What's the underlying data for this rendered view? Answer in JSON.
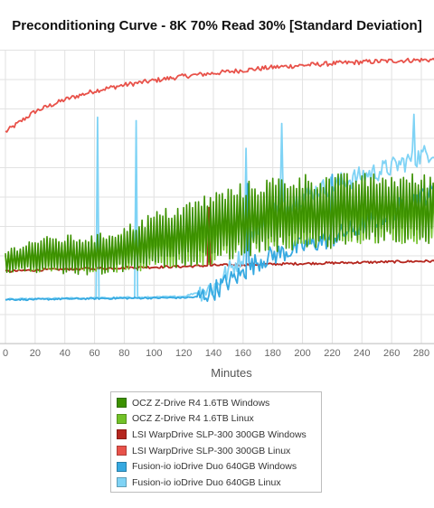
{
  "chart_data": {
    "type": "line",
    "title": "Preconditioning Curve - 8K 70% Read 30% [Standard Deviation]",
    "xlabel": "Minutes",
    "ylabel": "",
    "xlim": [
      0,
      290
    ],
    "x_ticks": [
      0,
      20,
      40,
      60,
      80,
      100,
      120,
      140,
      160,
      180,
      200,
      220,
      240,
      260,
      280
    ],
    "x_tick_labels": [
      "0",
      "20",
      "40",
      "60",
      "80",
      "100",
      "120",
      "140",
      "160",
      "180",
      "200",
      "220",
      "240",
      "260",
      "280"
    ],
    "ylim": [
      0,
      100
    ],
    "grid": true,
    "legend_position": "bottom",
    "series": [
      {
        "name": "OCZ Z-Drive R4 1.6TB Windows",
        "color": "#3c9100",
        "x": [
          0,
          20,
          40,
          60,
          80,
          100,
          120,
          140,
          160,
          180,
          200,
          220,
          240,
          260,
          280,
          290
        ],
        "center": [
          28,
          30,
          30,
          30,
          32,
          35,
          37,
          40,
          42,
          44,
          45,
          45,
          46,
          46,
          46,
          46
        ],
        "amplitude": [
          4,
          6,
          7,
          7,
          8,
          10,
          11,
          12,
          13,
          13,
          13,
          13,
          12,
          12,
          12,
          12
        ]
      },
      {
        "name": "OCZ Z-Drive R4 1.6TB Linux",
        "color": "#72c228",
        "x": [
          0,
          20,
          40,
          60,
          80,
          100,
          120,
          140,
          160,
          180,
          200,
          220,
          240,
          260,
          280,
          290
        ],
        "center": [
          28,
          29,
          30,
          30,
          31,
          33,
          35,
          37,
          40,
          42,
          43,
          44,
          44,
          44,
          44,
          44
        ],
        "amplitude": [
          3,
          5,
          5,
          6,
          7,
          8,
          9,
          10,
          10,
          10,
          10,
          10,
          10,
          10,
          10,
          10
        ]
      },
      {
        "name": "LSI WarpDrive SLP-300 300GB Windows",
        "color": "#b5261e",
        "x": [
          0,
          20,
          40,
          60,
          80,
          100,
          120,
          136,
          137,
          138,
          140,
          160,
          180,
          200,
          220,
          240,
          260,
          280,
          290
        ],
        "y": [
          24.5,
          25,
          25.3,
          25.5,
          25.8,
          26,
          26.2,
          26.5,
          46,
          26.5,
          26.6,
          26.8,
          27,
          27.2,
          27.4,
          27.6,
          27.8,
          28,
          28
        ]
      },
      {
        "name": "LSI WarpDrive SLP-300 300GB Linux",
        "color": "#e8524a",
        "x": [
          0,
          20,
          40,
          60,
          80,
          100,
          120,
          140,
          160,
          180,
          200,
          220,
          240,
          260,
          280,
          290
        ],
        "y": [
          72,
          79,
          83,
          86,
          88,
          89.5,
          91,
          92,
          93,
          94,
          94.7,
          95.3,
          95.8,
          96.2,
          96.5,
          96.6
        ]
      },
      {
        "name": "Fusion-io ioDrive Duo 640GB Windows",
        "color": "#36a9e1",
        "x": [
          0,
          20,
          40,
          60,
          80,
          100,
          120,
          130,
          140,
          150,
          160,
          170,
          180,
          200,
          220,
          240,
          260,
          280,
          290
        ],
        "y": [
          15,
          15,
          15.2,
          15.3,
          15.4,
          15.5,
          15.6,
          15.8,
          18,
          21,
          24,
          28,
          30,
          33,
          36,
          40,
          45,
          50,
          52
        ]
      },
      {
        "name": "Fusion-io ioDrive Duo 640GB Linux",
        "color": "#7fd3f5",
        "x": [
          0,
          20,
          40,
          60,
          80,
          100,
          120,
          140,
          160,
          170,
          180,
          200,
          220,
          240,
          260,
          280,
          290
        ],
        "y": [
          15,
          15.1,
          15.3,
          15.4,
          15.6,
          15.7,
          16,
          19,
          30,
          40,
          45,
          50,
          54,
          57,
          60,
          64,
          66
        ]
      }
    ]
  }
}
